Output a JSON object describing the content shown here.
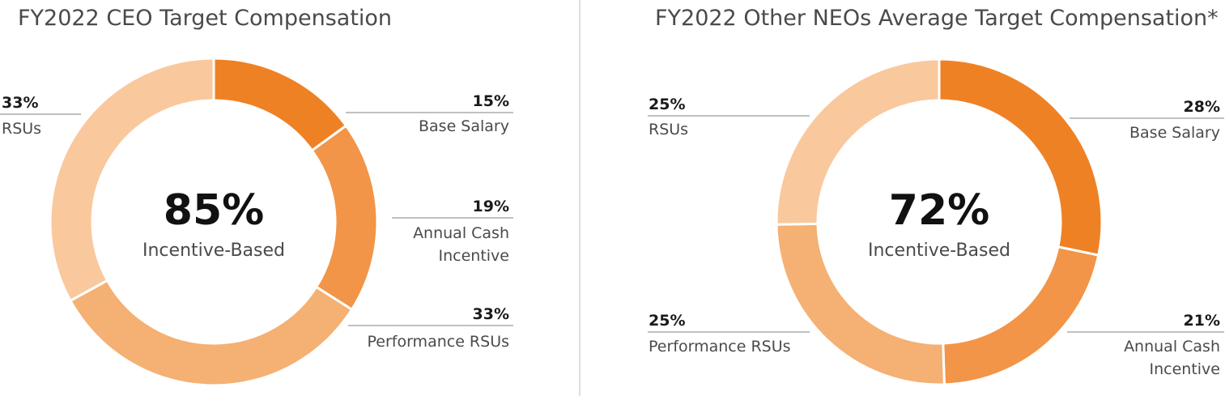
{
  "chart_data": [
    {
      "type": "pie",
      "title": "FY2022 CEO Target Compensation",
      "center_value": "85%",
      "center_label": "Incentive-Based",
      "slices": [
        {
          "name": "Base Salary",
          "value": 15,
          "pct_label": "15%",
          "label_lines": [
            "Base Salary"
          ],
          "color": "#EF8125"
        },
        {
          "name": "Annual Cash Incentive",
          "value": 19,
          "pct_label": "19%",
          "label_lines": [
            "Annual Cash",
            "Incentive"
          ],
          "color": "#F29548"
        },
        {
          "name": "Performance RSUs",
          "value": 33,
          "pct_label": "33%",
          "label_lines": [
            "Performance RSUs"
          ],
          "color": "#F5B074"
        },
        {
          "name": "RSUs",
          "value": 33,
          "pct_label": "33%",
          "label_lines": [
            "RSUs"
          ],
          "color": "#F9C89D"
        }
      ]
    },
    {
      "type": "pie",
      "title": "FY2022 Other NEOs Average Target Compensation*",
      "center_value": "72%",
      "center_label": "Incentive-Based",
      "slices": [
        {
          "name": "Base Salary",
          "value": 28,
          "pct_label": "28%",
          "label_lines": [
            "Base Salary"
          ],
          "color": "#EF8125"
        },
        {
          "name": "Annual Cash Incentive",
          "value": 21,
          "pct_label": "21%",
          "label_lines": [
            "Annual Cash",
            "Incentive"
          ],
          "color": "#F29548"
        },
        {
          "name": "Performance RSUs",
          "value": 25,
          "pct_label": "25%",
          "label_lines": [
            "Performance RSUs"
          ],
          "color": "#F5B074"
        },
        {
          "name": "RSUs",
          "value": 25,
          "pct_label": "25%",
          "label_lines": [
            "RSUs"
          ],
          "color": "#F9C89D"
        }
      ]
    }
  ]
}
